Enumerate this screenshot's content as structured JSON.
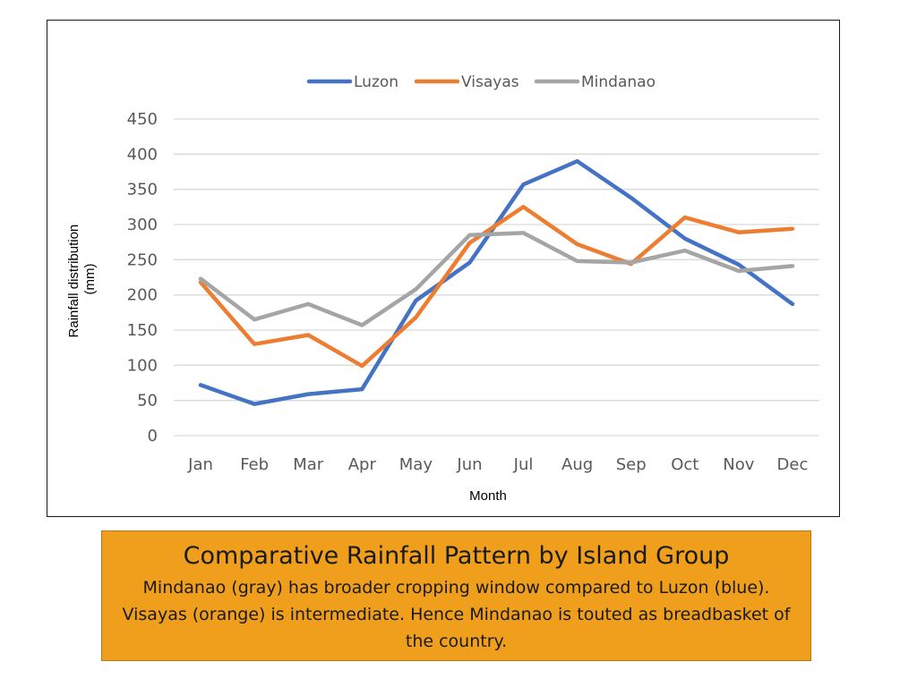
{
  "chart_data": {
    "type": "line",
    "title": "",
    "xlabel": "Month",
    "ylabel": "Rainfall distribution (mm)",
    "ylabel_lines": [
      "Rainfall distribution",
      "(mm)"
    ],
    "ylim": [
      0,
      450
    ],
    "yticks": [
      "0",
      "50",
      "100",
      "150",
      "200",
      "250",
      "300",
      "350",
      "400",
      "450"
    ],
    "categories": [
      "Jan",
      "Feb",
      "Mar",
      "Apr",
      "May",
      "Jun",
      "Jul",
      "Aug",
      "Sep",
      "Oct",
      "Nov",
      "Dec"
    ],
    "grid": true,
    "legend_position": "top-center",
    "series": [
      {
        "name": "Luzon",
        "color": "#4472c4",
        "values": [
          72,
          45,
          59,
          66,
          192,
          246,
          357,
          390,
          338,
          280,
          243,
          187
        ]
      },
      {
        "name": "Visayas",
        "color": "#ed7d31",
        "values": [
          218,
          130,
          143,
          99,
          168,
          274,
          325,
          272,
          244,
          310,
          289,
          294
        ]
      },
      {
        "name": "Mindanao",
        "color": "#a5a5a5",
        "values": [
          223,
          165,
          187,
          157,
          208,
          285,
          288,
          248,
          246,
          263,
          234,
          241
        ]
      }
    ]
  },
  "caption": {
    "title": "Comparative Rainfall Pattern by Island Group",
    "body": "Mindanao (gray) has broader cropping window compared to Luzon (blue). Visayas (orange) is intermediate. Hence Mindanao is touted as breadbasket of the country."
  }
}
